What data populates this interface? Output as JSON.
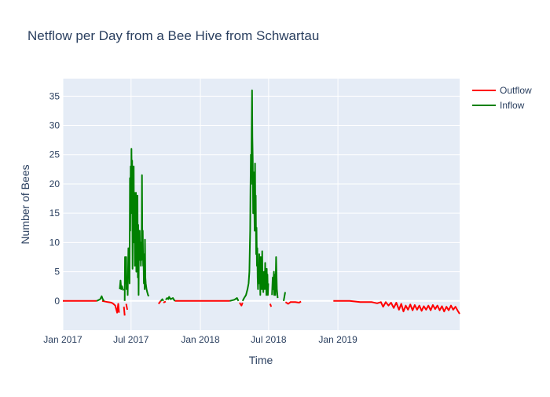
{
  "chart_data": {
    "type": "line",
    "title": "Netflow per Day from a Bee Hive from Schwartau",
    "xlabel": "Time",
    "ylabel": "Number of Bees",
    "x_range": [
      "2017-01-01",
      "2019-11-20"
    ],
    "ylim": [
      -5,
      38
    ],
    "x_ticks": [
      {
        "date": "2017-01-01",
        "label": "Jan 2017"
      },
      {
        "date": "2017-07-01",
        "label": "Jul 2017"
      },
      {
        "date": "2018-01-01",
        "label": "Jan 2018"
      },
      {
        "date": "2018-07-01",
        "label": "Jul 2018"
      },
      {
        "date": "2019-01-01",
        "label": "Jan 2019"
      }
    ],
    "y_ticks": [
      0,
      5,
      10,
      15,
      20,
      25,
      30,
      35
    ],
    "grid": true,
    "legend_position": "top-right",
    "plot_background": "#e5ecf6",
    "series": [
      {
        "name": "Outflow",
        "color": "#ff0000",
        "segments": [
          [
            [
              "2017-01-01",
              0
            ],
            [
              "2017-02-01",
              0
            ],
            [
              "2017-03-01",
              0
            ],
            [
              "2017-04-01",
              0
            ]
          ],
          [
            [
              "2017-04-15",
              0
            ],
            [
              "2017-05-01",
              -0.2
            ],
            [
              "2017-05-10",
              -0.3
            ],
            [
              "2017-05-15",
              -0.5
            ],
            [
              "2017-05-20",
              -0.8
            ],
            [
              "2017-05-25",
              -2
            ],
            [
              "2017-05-28",
              -0.5
            ],
            [
              "2017-05-30",
              -2
            ]
          ],
          [
            [
              "2017-06-12",
              -1
            ],
            [
              "2017-06-14",
              -2.5
            ]
          ],
          [
            [
              "2017-06-18",
              -0.5
            ],
            [
              "2017-06-21",
              -1.5
            ]
          ],
          [
            [
              "2017-09-12",
              -0.5
            ],
            [
              "2017-09-18",
              0
            ]
          ],
          [
            [
              "2017-09-25",
              -0.3
            ],
            [
              "2017-10-01",
              -0.1
            ]
          ],
          [
            [
              "2017-10-25",
              0
            ],
            [
              "2017-11-15",
              0
            ],
            [
              "2017-12-01",
              0
            ],
            [
              "2018-01-01",
              0
            ],
            [
              "2018-02-01",
              0
            ],
            [
              "2018-03-01",
              0
            ],
            [
              "2018-03-20",
              0
            ]
          ],
          [
            [
              "2018-04-15",
              -0.3
            ],
            [
              "2018-04-20",
              -0.8
            ],
            [
              "2018-04-23",
              -0.3
            ]
          ],
          [
            [
              "2018-07-05",
              -0.5
            ],
            [
              "2018-07-08",
              -1
            ]
          ],
          [
            [
              "2018-08-15",
              -0.2
            ],
            [
              "2018-08-22",
              -0.5
            ],
            [
              "2018-08-28",
              -0.2
            ],
            [
              "2018-09-10",
              -0.2
            ],
            [
              "2018-09-20",
              -0.3
            ],
            [
              "2018-09-25",
              -0.1
            ]
          ],
          [
            [
              "2018-12-20",
              0
            ],
            [
              "2019-01-15",
              0
            ],
            [
              "2019-02-01",
              0
            ],
            [
              "2019-03-01",
              -0.2
            ],
            [
              "2019-04-01",
              -0.2
            ],
            [
              "2019-04-15",
              -0.4
            ],
            [
              "2019-04-25",
              -0.2
            ],
            [
              "2019-05-01",
              -1
            ],
            [
              "2019-05-08",
              -0.2
            ],
            [
              "2019-05-15",
              -0.8
            ],
            [
              "2019-05-22",
              -0.3
            ],
            [
              "2019-05-29",
              -1.2
            ],
            [
              "2019-06-05",
              -0.3
            ],
            [
              "2019-06-12",
              -1.5
            ],
            [
              "2019-06-18",
              -0.5
            ],
            [
              "2019-06-24",
              -1.8
            ],
            [
              "2019-06-30",
              -0.8
            ],
            [
              "2019-07-06",
              -1.5
            ],
            [
              "2019-07-12",
              -0.6
            ],
            [
              "2019-07-18",
              -1.6
            ],
            [
              "2019-07-24",
              -0.7
            ],
            [
              "2019-07-30",
              -1.5
            ],
            [
              "2019-08-05",
              -0.8
            ],
            [
              "2019-08-11",
              -1.7
            ],
            [
              "2019-08-17",
              -0.9
            ],
            [
              "2019-08-23",
              -1.5
            ],
            [
              "2019-08-29",
              -0.8
            ],
            [
              "2019-09-04",
              -1.6
            ],
            [
              "2019-09-10",
              -0.7
            ],
            [
              "2019-09-16",
              -1.4
            ],
            [
              "2019-09-22",
              -0.8
            ],
            [
              "2019-09-28",
              -1.6
            ],
            [
              "2019-10-04",
              -0.9
            ],
            [
              "2019-10-10",
              -1.8
            ],
            [
              "2019-10-16",
              -1.0
            ],
            [
              "2019-10-22",
              -1.6
            ],
            [
              "2019-10-28",
              -0.8
            ],
            [
              "2019-11-03",
              -1.5
            ],
            [
              "2019-11-09",
              -1.0
            ],
            [
              "2019-11-15",
              -1.7
            ],
            [
              "2019-11-20",
              -2.2
            ]
          ]
        ]
      },
      {
        "name": "Inflow",
        "color": "#008000",
        "segments": [
          [
            [
              "2017-04-01",
              0
            ],
            [
              "2017-04-10",
              0.3
            ],
            [
              "2017-04-14",
              0.8
            ],
            [
              "2017-04-17",
              0.3
            ],
            [
              "2017-04-20",
              0
            ]
          ],
          [
            [
              "2017-06-01",
              2
            ],
            [
              "2017-06-03",
              3.5
            ],
            [
              "2017-06-05",
              2
            ],
            [
              "2017-06-07",
              2.5
            ],
            [
              "2017-06-09",
              2
            ],
            [
              "2017-06-11",
              1.8
            ]
          ],
          [
            [
              "2017-06-14",
              0
            ],
            [
              "2017-06-15",
              7.5
            ],
            [
              "2017-06-16",
              3
            ],
            [
              "2017-06-18",
              7.5
            ],
            [
              "2017-06-19",
              2
            ],
            [
              "2017-06-21",
              4
            ],
            [
              "2017-06-22",
              1
            ],
            [
              "2017-06-24",
              9
            ],
            [
              "2017-06-25",
              5
            ],
            [
              "2017-06-26",
              9
            ],
            [
              "2017-06-27",
              3
            ],
            [
              "2017-06-28",
              21
            ],
            [
              "2017-06-29",
              12
            ],
            [
              "2017-06-30",
              23
            ],
            [
              "2017-07-01",
              15
            ],
            [
              "2017-07-02",
              26
            ],
            [
              "2017-07-03",
              18
            ],
            [
              "2017-07-04",
              24
            ],
            [
              "2017-07-05",
              5.5
            ],
            [
              "2017-07-06",
              21
            ],
            [
              "2017-07-07",
              14
            ],
            [
              "2017-07-08",
              23
            ],
            [
              "2017-07-09",
              10
            ],
            [
              "2017-07-10",
              18.5
            ],
            [
              "2017-07-11",
              6
            ],
            [
              "2017-07-12",
              15
            ],
            [
              "2017-07-13",
              8
            ],
            [
              "2017-07-14",
              18.5
            ],
            [
              "2017-07-15",
              5
            ],
            [
              "2017-07-16",
              13
            ],
            [
              "2017-07-17",
              9
            ],
            [
              "2017-07-18",
              18
            ],
            [
              "2017-07-19",
              4
            ],
            [
              "2017-07-20",
              13
            ],
            [
              "2017-07-21",
              1
            ],
            [
              "2017-07-22",
              12
            ],
            [
              "2017-07-23",
              8
            ],
            [
              "2017-07-24",
              12
            ],
            [
              "2017-07-25",
              7
            ],
            [
              "2017-07-26",
              10
            ],
            [
              "2017-07-27",
              6
            ],
            [
              "2017-07-28",
              9
            ],
            [
              "2017-07-29",
              7
            ],
            [
              "2017-07-30",
              21.5
            ],
            [
              "2017-07-31",
              8
            ],
            [
              "2017-08-01",
              12
            ],
            [
              "2017-08-02",
              6
            ],
            [
              "2017-08-03",
              8
            ],
            [
              "2017-08-04",
              3
            ],
            [
              "2017-08-05",
              8
            ],
            [
              "2017-08-06",
              2
            ],
            [
              "2017-08-07",
              10.5
            ],
            [
              "2017-08-08",
              4
            ],
            [
              "2017-08-09",
              3
            ],
            [
              "2017-08-11",
              2
            ],
            [
              "2017-08-13",
              1.5
            ],
            [
              "2017-08-15",
              1
            ],
            [
              "2017-08-17",
              0.8
            ]
          ],
          [
            [
              "2017-09-18",
              0
            ],
            [
              "2017-09-22",
              0.3
            ],
            [
              "2017-09-25",
              0
            ]
          ],
          [
            [
              "2017-10-01",
              0.2
            ],
            [
              "2017-10-05",
              0.5
            ],
            [
              "2017-10-08",
              0.3
            ],
            [
              "2017-10-10",
              0.7
            ],
            [
              "2017-10-14",
              0.3
            ],
            [
              "2017-10-20",
              0.5
            ],
            [
              "2017-10-25",
              0
            ]
          ],
          [
            [
              "2018-03-20",
              0
            ],
            [
              "2018-04-01",
              0.2
            ],
            [
              "2018-04-08",
              0.5
            ],
            [
              "2018-04-12",
              0
            ]
          ],
          [
            [
              "2018-04-23",
              0
            ],
            [
              "2018-04-27",
              0.5
            ],
            [
              "2018-05-02",
              1
            ],
            [
              "2018-05-06",
              2
            ],
            [
              "2018-05-09",
              3
            ],
            [
              "2018-05-11",
              5
            ],
            [
              "2018-05-13",
              12
            ],
            [
              "2018-05-14",
              19
            ],
            [
              "2018-05-15",
              25
            ],
            [
              "2018-05-16",
              20
            ],
            [
              "2018-05-17",
              29
            ],
            [
              "2018-05-18",
              36
            ],
            [
              "2018-05-19",
              28
            ],
            [
              "2018-05-20",
              24
            ],
            [
              "2018-05-21",
              15
            ],
            [
              "2018-05-22",
              22
            ],
            [
              "2018-05-23",
              19
            ],
            [
              "2018-05-24",
              16.5
            ],
            [
              "2018-05-25",
              12
            ],
            [
              "2018-05-26",
              23.5
            ],
            [
              "2018-05-27",
              13
            ],
            [
              "2018-05-28",
              18
            ],
            [
              "2018-05-29",
              8
            ],
            [
              "2018-05-30",
              12.5
            ],
            [
              "2018-05-31",
              6
            ],
            [
              "2018-06-01",
              9
            ],
            [
              "2018-06-02",
              4
            ],
            [
              "2018-06-03",
              2
            ],
            [
              "2018-06-04",
              6
            ],
            [
              "2018-06-05",
              3
            ],
            [
              "2018-06-06",
              8
            ],
            [
              "2018-06-07",
              4
            ],
            [
              "2018-06-08",
              7
            ],
            [
              "2018-06-09",
              1
            ],
            [
              "2018-06-10",
              7.5
            ],
            [
              "2018-06-11",
              3
            ],
            [
              "2018-06-12",
              5
            ],
            [
              "2018-06-13",
              2
            ],
            [
              "2018-06-14",
              8.5
            ],
            [
              "2018-06-15",
              3
            ],
            [
              "2018-06-16",
              5
            ],
            [
              "2018-06-17",
              1.5
            ],
            [
              "2018-06-18",
              4
            ],
            [
              "2018-06-19",
              2
            ],
            [
              "2018-06-20",
              5
            ],
            [
              "2018-06-21",
              3
            ],
            [
              "2018-06-22",
              6.5
            ],
            [
              "2018-06-23",
              2
            ],
            [
              "2018-06-24",
              5
            ],
            [
              "2018-06-25",
              1
            ],
            [
              "2018-06-26",
              5.5
            ],
            [
              "2018-06-27",
              2
            ],
            [
              "2018-06-28",
              4.5
            ],
            [
              "2018-06-29",
              1
            ],
            [
              "2018-06-30",
              3
            ]
          ],
          [
            [
              "2018-07-10",
              1
            ],
            [
              "2018-07-12",
              4
            ],
            [
              "2018-07-13",
              2
            ],
            [
              "2018-07-15",
              5
            ],
            [
              "2018-07-16",
              1
            ],
            [
              "2018-07-18",
              4.5
            ],
            [
              "2018-07-19",
              1
            ],
            [
              "2018-07-21",
              7.5
            ],
            [
              "2018-07-23",
              2
            ],
            [
              "2018-07-25",
              0.5
            ]
          ],
          [
            [
              "2018-08-10",
              0
            ],
            [
              "2018-08-14",
              1.5
            ]
          ]
        ]
      }
    ],
    "legend": [
      {
        "name": "Outflow",
        "color": "#ff0000"
      },
      {
        "name": "Inflow",
        "color": "#008000"
      }
    ]
  }
}
